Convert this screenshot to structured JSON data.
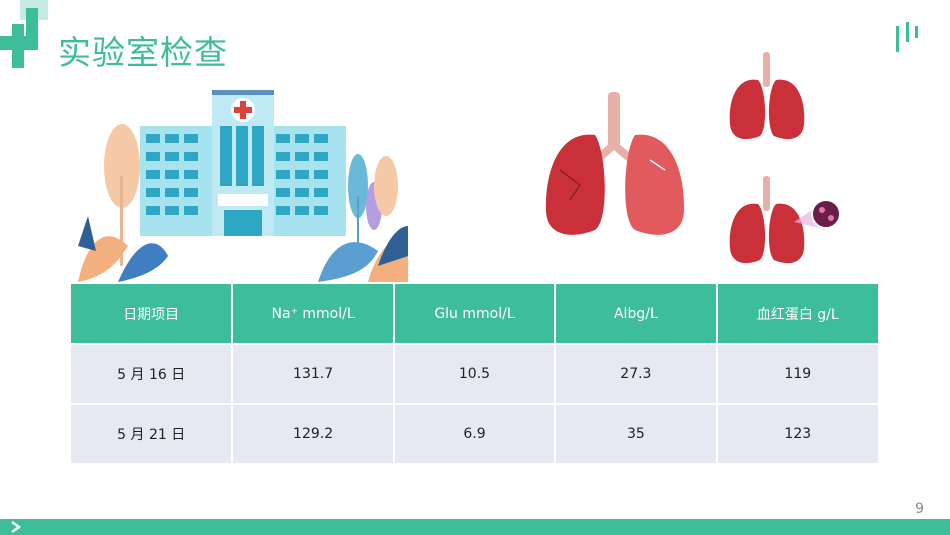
{
  "header": {
    "title": "实验室检查"
  },
  "table": {
    "headers": [
      "日期项目",
      "Na⁺ mmol/L",
      "Glu mmol/L",
      "Albg/L",
      "血红蛋白 g/L"
    ],
    "rows": [
      [
        "5 月 16 日",
        "131.7",
        "10.5",
        "27.3",
        "119"
      ],
      [
        "5 月 21 日",
        "129.2",
        "6.9",
        "35",
        "123"
      ]
    ]
  },
  "footer": {
    "page_number": "9"
  },
  "colors": {
    "accent": "#3dbd98",
    "header_cell": "#3dbd9b",
    "body_cell": "#e6e9f2",
    "lung": "#c9303a"
  },
  "icons": [
    "medical-cross-icon",
    "hospital-illustration",
    "lungs-illustration",
    "chevron-right-icon"
  ]
}
